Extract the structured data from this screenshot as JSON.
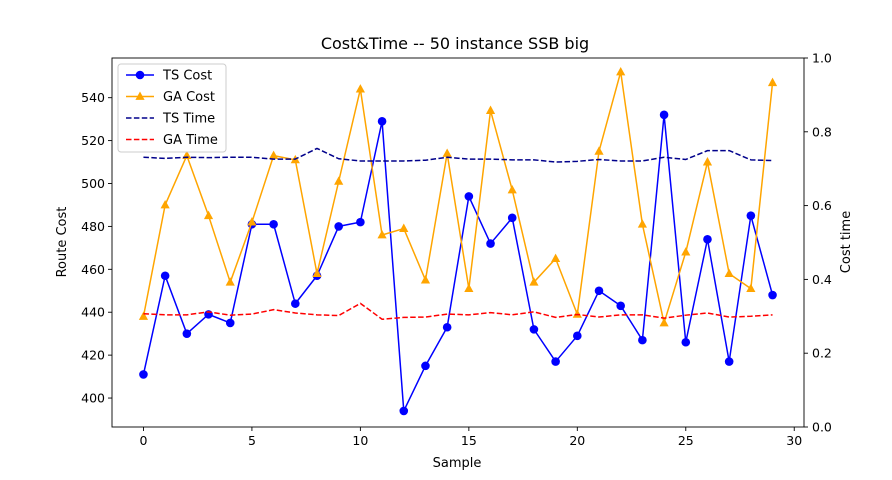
{
  "chart_data": {
    "type": "line",
    "title": "Cost&Time -- 50 instance SSB big",
    "xlabel": "Sample",
    "ylabel": "Route Cost",
    "y2label": "Cost time",
    "xlim": [
      -1.45,
      30.45
    ],
    "ylim": [
      386.5,
      558.5
    ],
    "y2lim": [
      0.0,
      1.0
    ],
    "xticks": [
      0,
      5,
      10,
      15,
      20,
      25,
      30
    ],
    "yticks": [
      400,
      420,
      440,
      460,
      480,
      500,
      520,
      540
    ],
    "y2ticks": [
      "0.0",
      "0.2",
      "0.4",
      "0.6",
      "0.8",
      "1.0"
    ],
    "y2tick_values": [
      0.0,
      0.2,
      0.4,
      0.6,
      0.8,
      1.0
    ],
    "legend_position": "upper-left",
    "x": [
      0,
      1,
      2,
      3,
      4,
      5,
      6,
      7,
      8,
      9,
      10,
      11,
      12,
      13,
      14,
      15,
      16,
      17,
      18,
      19,
      20,
      21,
      22,
      23,
      24,
      25,
      26,
      27,
      28,
      29
    ],
    "series": [
      {
        "name": "TS Cost",
        "axis": "left",
        "color": "#0000ff",
        "style": "solid",
        "marker": "circle",
        "values": [
          411,
          457,
          430,
          439,
          435,
          481,
          481,
          444,
          457,
          480,
          482,
          529,
          394,
          415,
          433,
          494,
          472,
          484,
          432,
          417,
          429,
          450,
          443,
          427,
          532,
          426,
          474,
          417,
          485,
          448
        ]
      },
      {
        "name": "GA Cost",
        "axis": "left",
        "color": "#ffa500",
        "style": "solid",
        "marker": "triangle",
        "values": [
          438,
          490,
          513,
          485,
          454,
          482,
          513,
          511,
          458,
          501,
          544,
          476,
          479,
          455,
          514,
          451,
          534,
          497,
          454,
          465,
          439,
          515,
          552,
          481,
          435,
          468,
          510,
          458,
          451,
          547
        ]
      },
      {
        "name": "TS Time",
        "axis": "right",
        "color": "#00008b",
        "style": "dashed",
        "values": [
          0.731,
          0.728,
          0.731,
          0.73,
          0.731,
          0.731,
          0.726,
          0.726,
          0.755,
          0.727,
          0.721,
          0.721,
          0.721,
          0.723,
          0.731,
          0.726,
          0.726,
          0.724,
          0.724,
          0.718,
          0.72,
          0.725,
          0.721,
          0.721,
          0.731,
          0.725,
          0.749,
          0.749,
          0.724,
          0.722
        ]
      },
      {
        "name": "GA Time",
        "axis": "right",
        "color": "#ff0000",
        "style": "dashed",
        "values": [
          0.307,
          0.304,
          0.304,
          0.312,
          0.303,
          0.306,
          0.318,
          0.309,
          0.304,
          0.302,
          0.335,
          0.292,
          0.297,
          0.298,
          0.306,
          0.304,
          0.31,
          0.304,
          0.312,
          0.297,
          0.305,
          0.298,
          0.304,
          0.304,
          0.295,
          0.303,
          0.309,
          0.298,
          0.3,
          0.304
        ]
      }
    ]
  }
}
